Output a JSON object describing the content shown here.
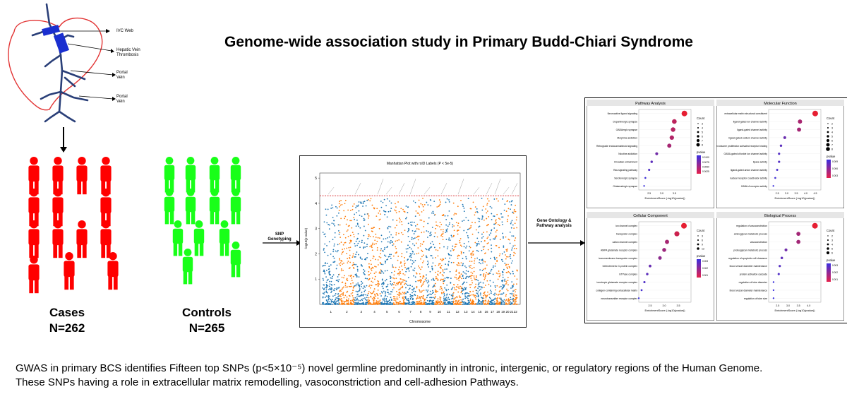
{
  "title": "Genome-wide association study in Primary Budd-Chiari Syndrome",
  "liver": {
    "labels": [
      "IVC Web",
      "Hepatic Vein Thrombosis",
      "Portal Vein",
      "Portal Vein"
    ]
  },
  "groups": {
    "cases": {
      "label": "Cases",
      "n": "N=262",
      "color": "#ff0000"
    },
    "controls": {
      "label": "Controls",
      "n": "N=265",
      "color": "#19ff19"
    }
  },
  "arrows": {
    "snp": "SNP Genotyping",
    "go": "Gene Ontology & Pathway analysis"
  },
  "chart_data": [
    {
      "type": "scatter",
      "title": "Manhattan Plot with rsID Labels (P < 5e-5)",
      "xlabel": "Chromosome",
      "ylabel": "-log10(p-value)",
      "categories": [
        "1",
        "2",
        "3",
        "4",
        "5",
        "6",
        "7",
        "8",
        "9",
        "10",
        "11",
        "12",
        "13",
        "14",
        "15",
        "16",
        "17",
        "18",
        "19",
        "20",
        "21",
        "22"
      ],
      "yticks": [
        1,
        2,
        3,
        4,
        5
      ],
      "ylim": [
        0,
        5.2
      ],
      "threshold": 4.3,
      "colors": [
        "#1f77b4",
        "#ff7f0e"
      ]
    },
    {
      "type": "scatter",
      "title": "Pathway Analysis",
      "xlabel": "EnrichmentScore (-log10(pvalue))",
      "xticks": [
        "2.5",
        "3.0",
        "3.5"
      ],
      "categories": [
        "Neuroactive ligand signaling",
        "Dopaminergic synapse",
        "GABAergic synapse",
        "Morphine addiction",
        "Retrograde endocannabinoid signaling",
        "Nicotine addiction",
        "Circadian entrainment",
        "Ras signaling pathway",
        "Serotonergic synapse",
        "Glutamatergic synapse"
      ],
      "values": [
        3.9,
        3.5,
        3.45,
        3.4,
        3.3,
        2.8,
        2.6,
        2.5,
        2.35,
        2.3
      ],
      "legend": {
        "count_title": "Count",
        "count_values": [
          "3",
          "4",
          "5",
          "6",
          "7",
          "8"
        ],
        "pvalue_title": "pvalue",
        "pvalue_ticks": [
          "0.0100",
          "0.0075",
          "0.0050",
          "0.0025"
        ]
      }
    },
    {
      "type": "scatter",
      "title": "Molecular Function",
      "xlabel": "EnrichmentScore (-log10(pvalue))",
      "xticks": [
        "2.5",
        "3.0",
        "3.5",
        "4.0",
        "4.5"
      ],
      "categories": [
        "extracellular matrix structural constituent",
        "ligand-gated ion channel activity",
        "ligand-gated channel activity",
        "ligand-gated sodium channel activity",
        "peroxisome proliferator activated receptor binding",
        "GABA-gated chloride ion channel activity",
        "lipase activity",
        "ligand-gated anion channel activity",
        "nuclear receptor coactivator activity",
        "GABA-A receptor activity"
      ],
      "values": [
        4.5,
        3.7,
        3.65,
        2.9,
        2.7,
        2.6,
        2.6,
        2.5,
        2.4,
        2.3
      ],
      "legend": {
        "count_title": "Count",
        "count_values": [
          "2",
          "3",
          "4",
          "5",
          "6",
          "7",
          "8"
        ],
        "pvalue_title": "pvalue",
        "pvalue_ticks": [
          "0.009",
          "0.006",
          "0.003"
        ]
      }
    },
    {
      "type": "scatter",
      "title": "Cellular Component",
      "xlabel": "EnrichmentScore (-log10(pvalue))",
      "xticks": [
        "2.5",
        "3.0",
        "3.5"
      ],
      "categories": [
        "ion channel complex",
        "transporter complex",
        "cation channel complex",
        "AMPA glutamate receptor complex",
        "transmembrane transporter complex",
        "heterotrimeric G-protein complex",
        "GTPase complex",
        "ionotropic glutamate receptor complex",
        "collagen-containing extracellular matrix",
        "neurotransmitter receptor complex"
      ],
      "values": [
        3.7,
        3.45,
        3.1,
        3.0,
        2.85,
        2.5,
        2.4,
        2.3,
        2.2,
        2.1
      ],
      "legend": {
        "count_title": "Count",
        "count_values": [
          "3",
          "6",
          "9",
          "12"
        ],
        "pvalue_title": "pvalue",
        "pvalue_ticks": [
          "0.003",
          "0.002",
          "0.001"
        ]
      }
    },
    {
      "type": "scatter",
      "title": "Biological Process",
      "xlabel": "EnrichmentScore (-log10(pvalue))",
      "xticks": [
        "2.5",
        "3.0",
        "3.5",
        "4.0"
      ],
      "categories": [
        "regulation of vasoconstriction",
        "aminoglycan metabolic process",
        "vasoconstriction",
        "proteoglycan metabolic process",
        "regulation of apoptotic cell clearance",
        "blood vessel diameter maintenance",
        "protein activation cascade",
        "regulation of tube diameter",
        "blood vessel diameter maintenance",
        "regulation of tube size"
      ],
      "values": [
        4.3,
        3.5,
        3.5,
        2.9,
        2.7,
        2.6,
        2.55,
        2.3,
        2.3,
        2.3
      ],
      "legend": {
        "count_title": "Count",
        "count_values": [
          "2",
          "3",
          "4",
          "5",
          "6"
        ],
        "pvalue_title": "pvalue",
        "pvalue_ticks": [
          "0.003",
          "0.002",
          "0.001"
        ]
      }
    }
  ],
  "summary": {
    "line1": "GWAS in primary BCS identifies Fifteen top SNPs (p<5×10⁻⁵) novel germline predominantly in intronic, intergenic, or regulatory regions of the Human Genome.",
    "line2": "These SNPs having a role in extracellular matrix remodelling, vasoconstriction and cell-adhesion Pathways."
  }
}
